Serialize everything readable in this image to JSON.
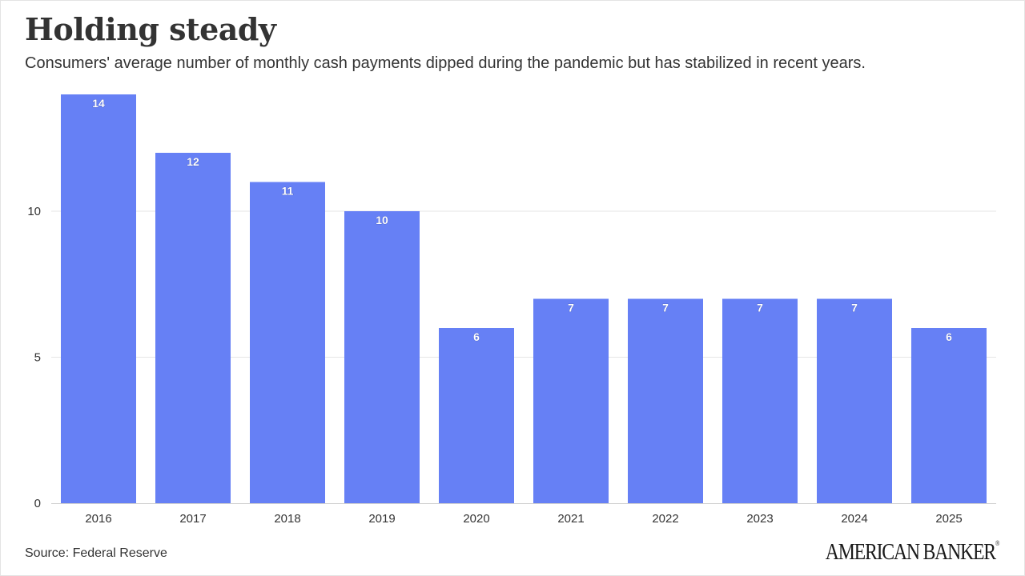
{
  "header": {
    "title": "Holding steady",
    "subtitle": "Consumers' average number of monthly cash payments dipped during the pandemic but has stabilized in recent years."
  },
  "footer": {
    "source": "Source: Federal Reserve",
    "logo_text": "AMERICAN BANKER",
    "logo_mark": "®"
  },
  "colors": {
    "bar": "#6680f5",
    "grid": "#e6e6e6",
    "axis_text": "#333333",
    "data_label": "#ffffff"
  },
  "chart_data": {
    "type": "bar",
    "categories": [
      "2016",
      "2017",
      "2018",
      "2019",
      "2020",
      "2021",
      "2022",
      "2023",
      "2024",
      "2025"
    ],
    "values": [
      14,
      12,
      11,
      10,
      6,
      7,
      7,
      7,
      7,
      6
    ],
    "title": "Holding steady",
    "subtitle": "Consumers' average number of monthly cash payments dipped during the pandemic but has stabilized in recent years.",
    "xlabel": "",
    "ylabel": "",
    "ylim": [
      0,
      14
    ],
    "yticks": [
      0,
      5,
      10
    ],
    "grid": true,
    "legend": "none",
    "data_labels": true
  }
}
